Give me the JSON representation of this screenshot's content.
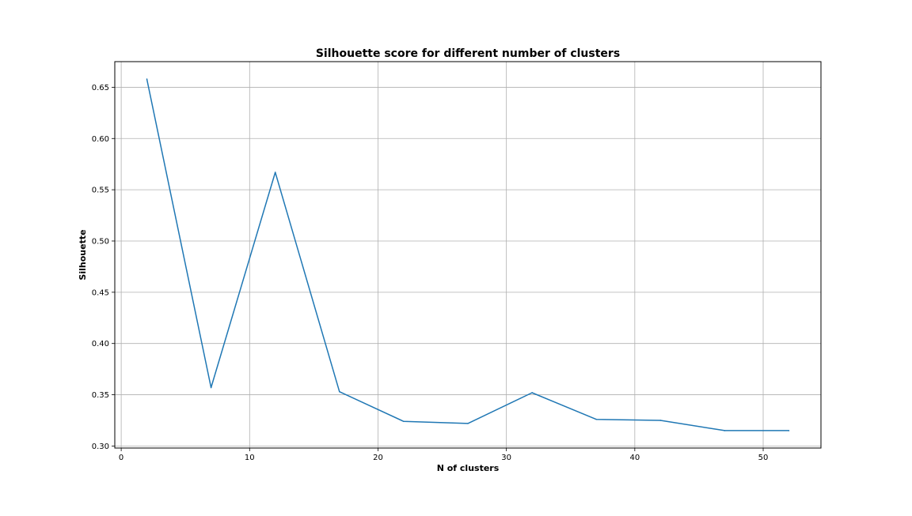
{
  "chart_data": {
    "type": "line",
    "title": "Silhouette score for different number of clusters",
    "xlabel": "N of clusters",
    "ylabel": "Silhouette",
    "xlim": [
      -0.5,
      54.5
    ],
    "ylim": [
      0.298,
      0.675
    ],
    "x_ticks": [
      0,
      10,
      20,
      30,
      40,
      50
    ],
    "x_tick_labels": [
      "0",
      "10",
      "20",
      "30",
      "40",
      "50"
    ],
    "y_ticks": [
      0.3,
      0.35,
      0.4,
      0.45,
      0.5,
      0.55,
      0.6,
      0.65
    ],
    "y_tick_labels": [
      "0.30",
      "0.35",
      "0.40",
      "0.45",
      "0.50",
      "0.55",
      "0.60",
      "0.65"
    ],
    "grid": true,
    "series": [
      {
        "color": "#1f77b4",
        "x": [
          2,
          7,
          12,
          17,
          22,
          27,
          32,
          37,
          42,
          47,
          52
        ],
        "y": [
          0.658,
          0.357,
          0.567,
          0.353,
          0.324,
          0.322,
          0.352,
          0.326,
          0.325,
          0.315,
          0.315
        ]
      }
    ]
  }
}
